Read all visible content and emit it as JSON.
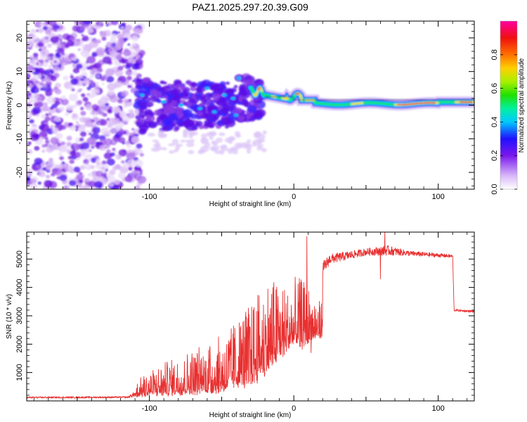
{
  "title": "PAZ1.2025.297.20.39.G09",
  "chart_data": [
    {
      "type": "heatmap",
      "name": "spectrogram",
      "xlabel": "Height of straight line (km)",
      "ylabel": "Frequency (Hz)",
      "xlim": [
        -185,
        125
      ],
      "ylim": [
        -25,
        25
      ],
      "x_ticks": [
        {
          "value": -100,
          "label": "-100"
        },
        {
          "value": 0,
          "label": "0"
        },
        {
          "value": 100,
          "label": "100"
        }
      ],
      "y_ticks": [
        {
          "value": -20,
          "label": "-20"
        },
        {
          "value": -10,
          "label": "-10"
        },
        {
          "value": 0,
          "label": "0"
        },
        {
          "value": 10,
          "label": "10"
        },
        {
          "value": 20,
          "label": "20"
        }
      ],
      "ridge": {
        "description_values": [
          {
            "x": -30,
            "y": 4
          },
          {
            "x": -20,
            "y": 3
          },
          {
            "x": -10,
            "y": 2
          },
          {
            "x": 0,
            "y": 3
          },
          {
            "x": 10,
            "y": 1
          },
          {
            "x": 50,
            "y": 0.5
          },
          {
            "x": 100,
            "y": 1
          },
          {
            "x": 125,
            "y": 1
          }
        ]
      },
      "colorbar": {
        "label": "Normalized spectral amplitude",
        "range": [
          0,
          1
        ],
        "ticks": [
          {
            "value": 0.0,
            "label": "0.0"
          },
          {
            "value": 0.2,
            "label": "0.2"
          },
          {
            "value": 0.4,
            "label": "0.4"
          },
          {
            "value": 0.6,
            "label": "0.6"
          },
          {
            "value": 0.8,
            "label": "0.8"
          }
        ]
      }
    },
    {
      "type": "line",
      "name": "snr",
      "xlabel": "Height of straight line (km)",
      "ylabel": "SNR (10 * v/v)",
      "xlim": [
        -185,
        125
      ],
      "ylim": [
        0,
        5950
      ],
      "color": "#e83030",
      "x_ticks": [
        {
          "value": -100,
          "label": "-100"
        },
        {
          "value": 0,
          "label": "0"
        },
        {
          "value": 100,
          "label": "100"
        }
      ],
      "y_ticks": [
        {
          "value": 1000,
          "label": "1000"
        },
        {
          "value": 2000,
          "label": "2000"
        },
        {
          "value": 3000,
          "label": "3000"
        },
        {
          "value": 4000,
          "label": "4000"
        },
        {
          "value": 5000,
          "label": "5000"
        }
      ],
      "envelope": [
        {
          "x": -185,
          "base": 120,
          "noise": 60
        },
        {
          "x": -115,
          "base": 130,
          "noise": 60
        },
        {
          "x": -105,
          "base": 350,
          "noise": 350
        },
        {
          "x": -80,
          "base": 500,
          "noise": 600
        },
        {
          "x": -50,
          "base": 700,
          "noise": 900
        },
        {
          "x": -30,
          "base": 1300,
          "noise": 1300
        },
        {
          "x": -15,
          "base": 2400,
          "noise": 1500
        },
        {
          "x": -5,
          "base": 3600,
          "noise": 1000
        },
        {
          "x": 5,
          "base": 3900,
          "noise": 1100
        },
        {
          "x": 15,
          "base": 4300,
          "noise": 700
        },
        {
          "x": 25,
          "base": 5000,
          "noise": 350
        },
        {
          "x": 50,
          "base": 5250,
          "noise": 250
        },
        {
          "x": 65,
          "base": 5300,
          "noise": 350
        },
        {
          "x": 80,
          "base": 5200,
          "noise": 180
        },
        {
          "x": 110,
          "base": 5100,
          "noise": 120
        },
        {
          "x": 111,
          "base": 3200,
          "noise": 80
        },
        {
          "x": 125,
          "base": 3150,
          "noise": 80
        }
      ],
      "features": [
        {
          "x": 9,
          "y": 5800
        },
        {
          "x": 12,
          "y": 1700
        },
        {
          "x": 63,
          "y": 5950
        },
        {
          "x": 60,
          "y": 4300
        }
      ]
    }
  ]
}
